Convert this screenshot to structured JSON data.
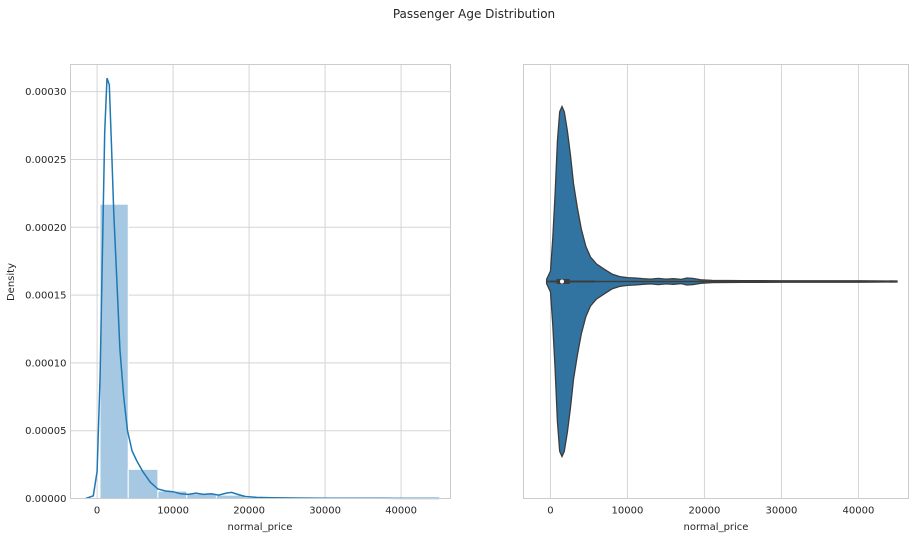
{
  "figure": {
    "suptitle": "Passenger Age Distribution"
  },
  "chart_data": [
    {
      "type": "histogram",
      "xlabel": "normal_price",
      "ylabel": "Density",
      "xlim": [
        -3500,
        46500
      ],
      "ylim": [
        0,
        0.00032
      ],
      "xticks": [
        0,
        10000,
        20000,
        30000,
        40000
      ],
      "yticks": [
        0,
        5e-05,
        0.0001,
        0.00015,
        0.0002,
        0.00025,
        0.0003
      ],
      "ytick_labels": [
        "0.00000",
        "0.00005",
        "0.00010",
        "0.00015",
        "0.00020",
        "0.00025",
        "0.00030"
      ],
      "grid": true,
      "bar_color": "#a7c8e2",
      "kde_color": "#1f77b4",
      "bins": [
        {
          "x0": 380,
          "x1": 4100,
          "density": 0.000217
        },
        {
          "x0": 4100,
          "x1": 8000,
          "density": 2.15e-05
        },
        {
          "x0": 8000,
          "x1": 11800,
          "density": 5.5e-06
        },
        {
          "x0": 11800,
          "x1": 15700,
          "density": 3.5e-06
        },
        {
          "x0": 15700,
          "x1": 19500,
          "density": 2.5e-06
        },
        {
          "x0": 19500,
          "x1": 23300,
          "density": 8e-07
        },
        {
          "x0": 23300,
          "x1": 27200,
          "density": 3e-07
        },
        {
          "x0": 27200,
          "x1": 31000,
          "density": 2e-07
        },
        {
          "x0": 31000,
          "x1": 34900,
          "density": 1e-07
        },
        {
          "x0": 34900,
          "x1": 38700,
          "density": 1e-07
        },
        {
          "x0": 38700,
          "x1": 42500,
          "density": 1e-07
        },
        {
          "x0": 42500,
          "x1": 46000,
          "density": 1e-07
        }
      ],
      "kde": {
        "x": [
          -1500,
          -500,
          0,
          400,
          700,
          1000,
          1300,
          1600,
          1900,
          2200,
          2600,
          3000,
          3500,
          4000,
          4600,
          5200,
          6000,
          7000,
          8000,
          9000,
          10000,
          11000,
          12000,
          13000,
          14000,
          15000,
          16000,
          17000,
          17700,
          18500,
          19500,
          21000,
          23000,
          26000,
          30000,
          35000,
          40000,
          45000
        ],
        "y": [
          0,
          2e-06,
          2e-05,
          9e-05,
          0.00018,
          0.00027,
          0.00031,
          0.000305,
          0.00026,
          0.00021,
          0.00016,
          0.00011,
          7.5e-05,
          5e-05,
          3.5e-05,
          2.8e-05,
          2e-05,
          1.2e-05,
          7e-06,
          5.5e-06,
          5e-06,
          3.5e-06,
          3e-06,
          4e-06,
          3e-06,
          3.5e-06,
          2.5e-06,
          4e-06,
          4.5e-06,
          3e-06,
          1.5e-06,
          8e-07,
          5e-07,
          4e-07,
          2e-07,
          2e-07,
          1e-07,
          1e-07
        ]
      }
    },
    {
      "type": "violin",
      "xlabel": "normal_price",
      "xlim": [
        -3500,
        46500
      ],
      "xticks": [
        0,
        10000,
        20000,
        30000,
        40000
      ],
      "grid": true,
      "body_color": "#3274a1",
      "edge_color": "#3c3c3c",
      "range": [
        -500,
        45000
      ],
      "quartiles": [
        800,
        1500,
        2500
      ],
      "median": 1500,
      "whiskers": [
        0,
        5800
      ],
      "profile": {
        "x": [
          -500,
          0,
          300,
          600,
          900,
          1200,
          1500,
          1800,
          2200,
          2600,
          3000,
          3500,
          4000,
          4600,
          5200,
          6000,
          7000,
          8000,
          9000,
          10000,
          11000,
          12000,
          13000,
          14000,
          15000,
          16000,
          17000,
          17700,
          18500,
          19500,
          21000,
          25000,
          30000,
          35000,
          40000,
          45000
        ],
        "half_width": [
          0.012,
          0.06,
          0.25,
          0.5,
          0.8,
          0.97,
          1.0,
          0.97,
          0.86,
          0.72,
          0.56,
          0.42,
          0.3,
          0.2,
          0.14,
          0.1,
          0.07,
          0.042,
          0.028,
          0.022,
          0.02,
          0.016,
          0.014,
          0.018,
          0.014,
          0.016,
          0.012,
          0.02,
          0.018,
          0.01,
          0.006,
          0.005,
          0.004,
          0.004,
          0.004,
          0.003
        ]
      }
    }
  ]
}
